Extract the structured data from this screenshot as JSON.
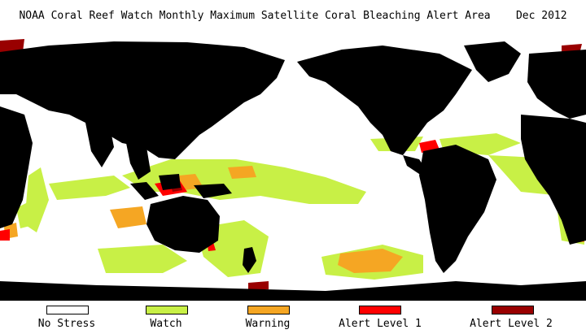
{
  "title": "NOAA Coral Reef Watch Monthly Maximum Satellite Coral Bleaching Alert Area",
  "date": "Dec 2012",
  "colors": {
    "land": "#000000",
    "no_stress": "#ffffff",
    "watch": "#c8f046",
    "warning": "#f5a623",
    "alert1": "#ff0000",
    "alert2": "#990000"
  },
  "legend": [
    {
      "label": "No Stress",
      "color": "#ffffff"
    },
    {
      "label": "Watch",
      "color": "#c8f046"
    },
    {
      "label": "Warning",
      "color": "#f5a623"
    },
    {
      "label": "Alert Level 1",
      "color": "#ff0000"
    },
    {
      "label": "Alert Level 2",
      "color": "#990000"
    }
  ]
}
